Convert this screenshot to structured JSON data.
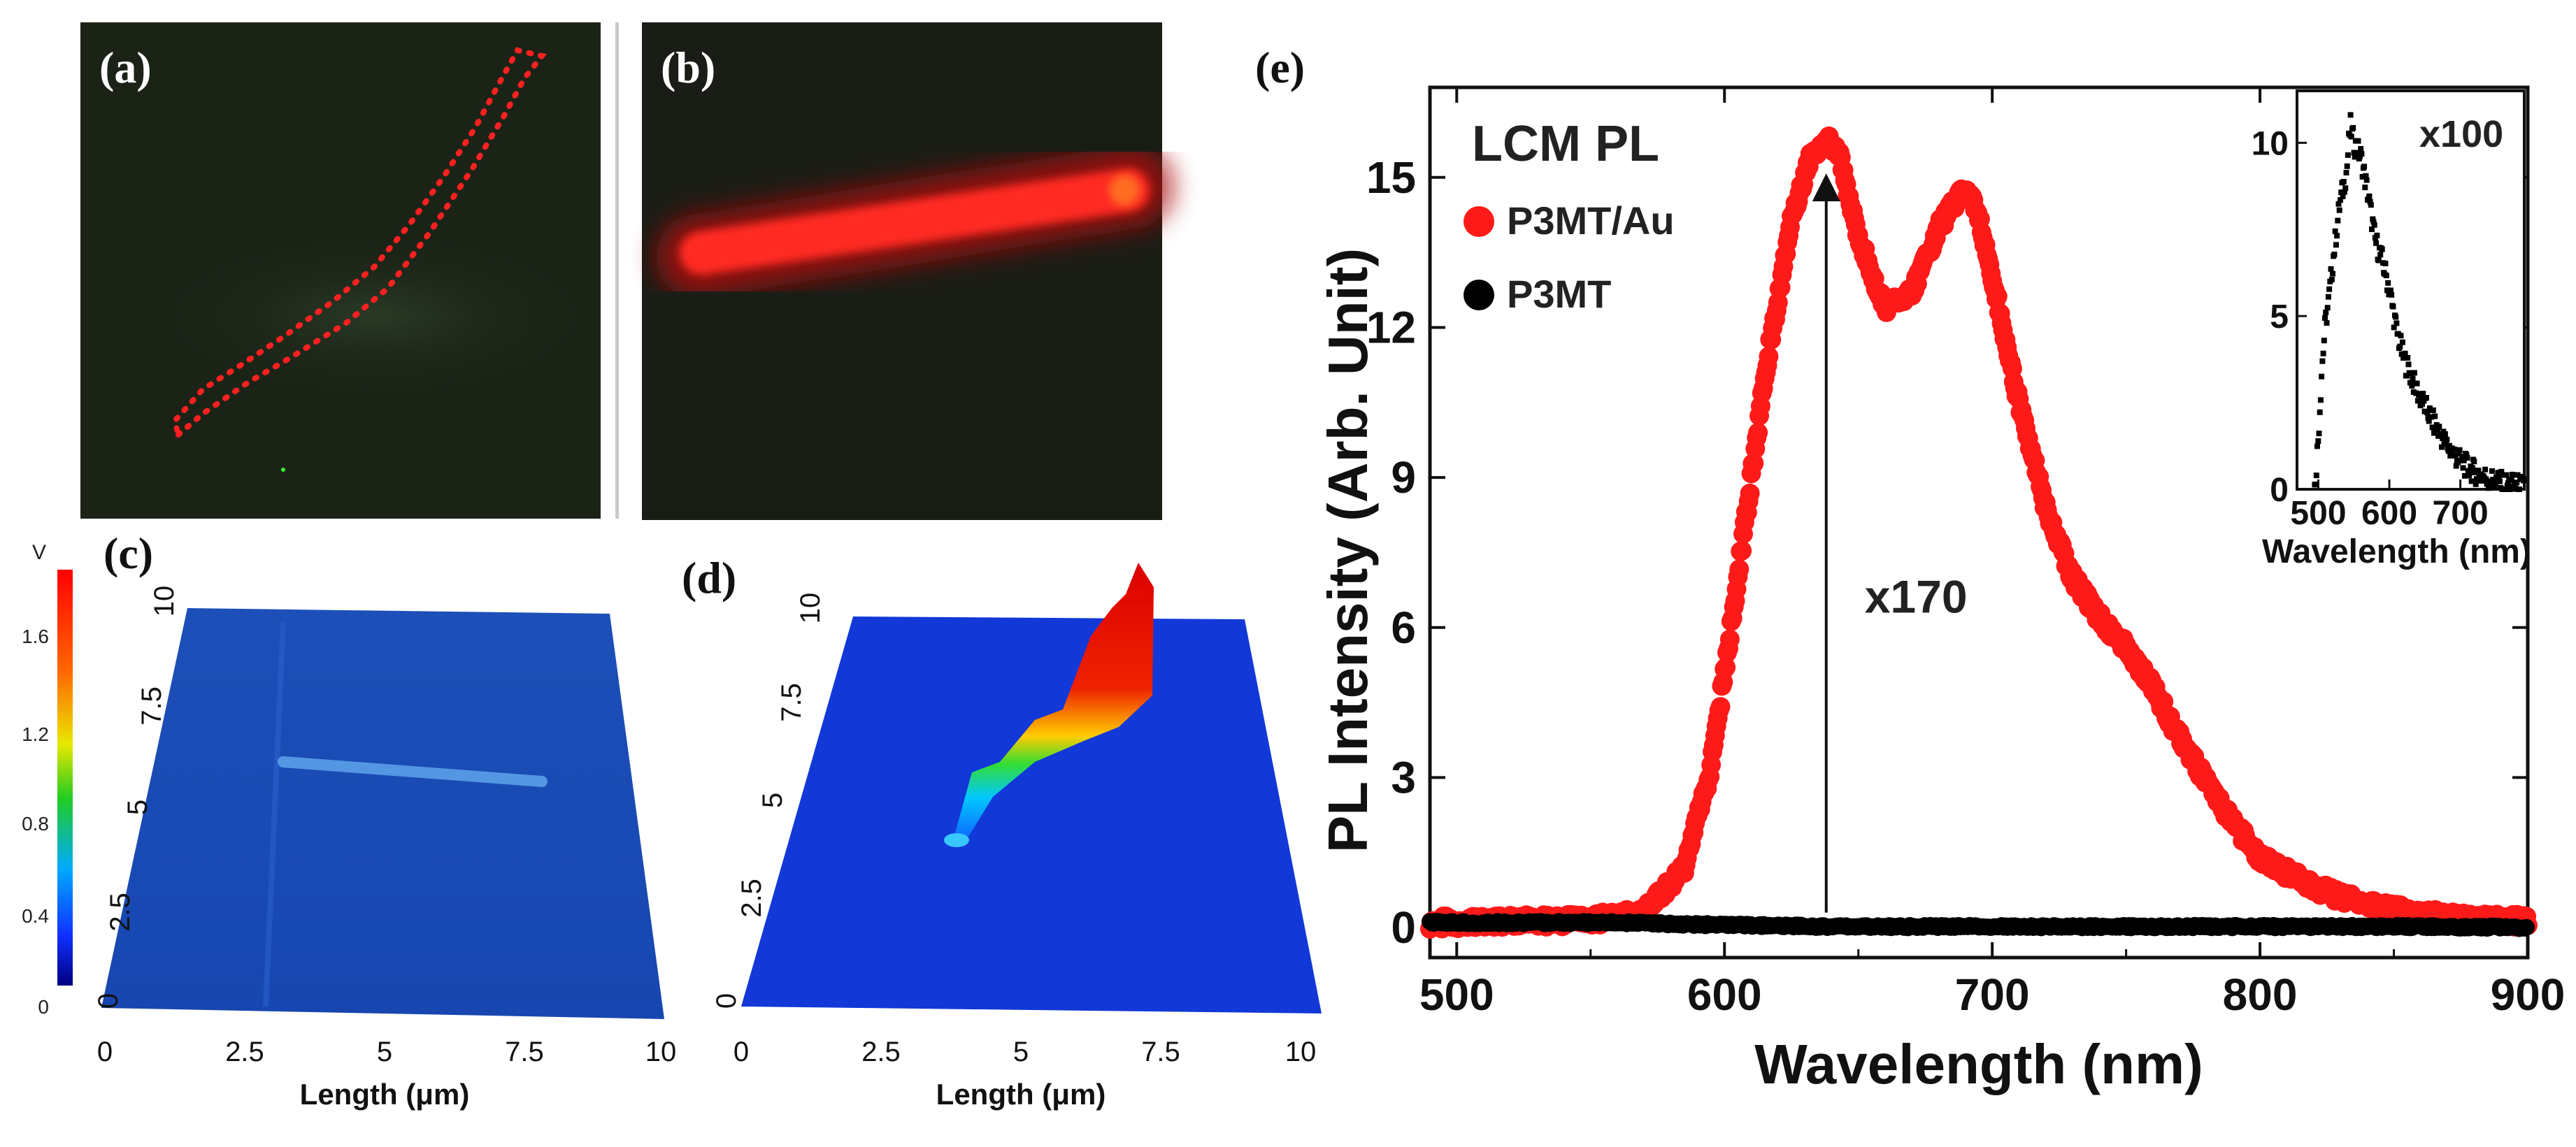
{
  "panels": {
    "a": {
      "label": "(a)"
    },
    "b": {
      "label": "(b)"
    },
    "c": {
      "label": "(c)",
      "xlabel": "Length (μm)",
      "x_ticks": [
        "0",
        "2.5",
        "5",
        "7.5",
        "10"
      ],
      "y_ticks": [
        "0",
        "2.5",
        "5",
        "7.5",
        "10"
      ],
      "colorbar": {
        "unit": "V",
        "ticks": [
          "1.6",
          "1.2",
          "0.8",
          "0.4",
          "0"
        ]
      }
    },
    "d": {
      "label": "(d)",
      "xlabel": "Length (μm)",
      "x_ticks": [
        "0",
        "2.5",
        "5",
        "7.5",
        "10"
      ],
      "y_ticks": [
        "0",
        "2.5",
        "5",
        "7.5",
        "10"
      ]
    },
    "e": {
      "label": "(e)"
    }
  },
  "chart_data": {
    "type": "scatter",
    "title": "LCM PL",
    "xlabel": "Wavelength (nm)",
    "ylabel": "PL Intensity (Arb. Unit)",
    "xlim": [
      490,
      900
    ],
    "ylim": [
      -0.6,
      16.8
    ],
    "x_ticks": [
      500,
      600,
      700,
      800,
      900
    ],
    "y_ticks": [
      0,
      3,
      6,
      9,
      12,
      15
    ],
    "legend": [
      {
        "name": "P3MT/Au",
        "color": "#ff1a1a"
      },
      {
        "name": "P3MT",
        "color": "#000000"
      }
    ],
    "annotation": {
      "text": "x170",
      "x": 638,
      "y_from": 0.3,
      "y_to": 14.8
    },
    "series": [
      {
        "name": "P3MT/Au",
        "color": "#ff1a1a",
        "x": [
          490,
          520,
          550,
          570,
          585,
          595,
          605,
          615,
          625,
          632,
          638,
          643,
          650,
          660,
          670,
          680,
          690,
          695,
          700,
          710,
          720,
          730,
          740,
          750,
          760,
          770,
          780,
          790,
          800,
          820,
          840,
          860,
          880,
          900
        ],
        "y": [
          0.1,
          0.12,
          0.15,
          0.3,
          1.2,
          3.2,
          7.0,
          11.0,
          14.2,
          15.4,
          15.8,
          15.4,
          13.8,
          12.4,
          12.7,
          14.0,
          14.8,
          14.2,
          13.0,
          10.5,
          8.4,
          7.0,
          6.2,
          5.6,
          4.8,
          3.8,
          2.9,
          2.1,
          1.4,
          0.8,
          0.45,
          0.25,
          0.18,
          0.12
        ]
      },
      {
        "name": "P3MT",
        "color": "#000000",
        "x": [
          490,
          560,
          600,
          640,
          700,
          760,
          820,
          860,
          900
        ],
        "y": [
          0.1,
          0.1,
          0.05,
          0.02,
          0.02,
          0.02,
          0.02,
          0.02,
          0.0
        ]
      }
    ],
    "inset": {
      "type": "scatter",
      "annotation": "x100",
      "xlabel": "Wavelength (nm)",
      "xlim": [
        470,
        790
      ],
      "ylim": [
        0,
        11.5
      ],
      "x_ticks": [
        500,
        600,
        700
      ],
      "y_ticks": [
        0,
        5,
        10
      ],
      "series": [
        {
          "name": "P3MT",
          "color": "#000000",
          "x": [
            495,
            500,
            505,
            510,
            515,
            520,
            530,
            540,
            545,
            550,
            560,
            570,
            580,
            590,
            600,
            610,
            620,
            640,
            660,
            680,
            700,
            720,
            740,
            760,
            780,
            790
          ],
          "y": [
            0.0,
            1.5,
            3.5,
            4.8,
            5.5,
            6.5,
            8.2,
            9.2,
            10.5,
            10.0,
            9.6,
            8.5,
            7.2,
            6.6,
            5.8,
            4.6,
            3.8,
            2.8,
            2.0,
            1.3,
            0.8,
            0.5,
            0.3,
            0.15,
            0.1,
            0.05
          ]
        }
      ]
    }
  }
}
